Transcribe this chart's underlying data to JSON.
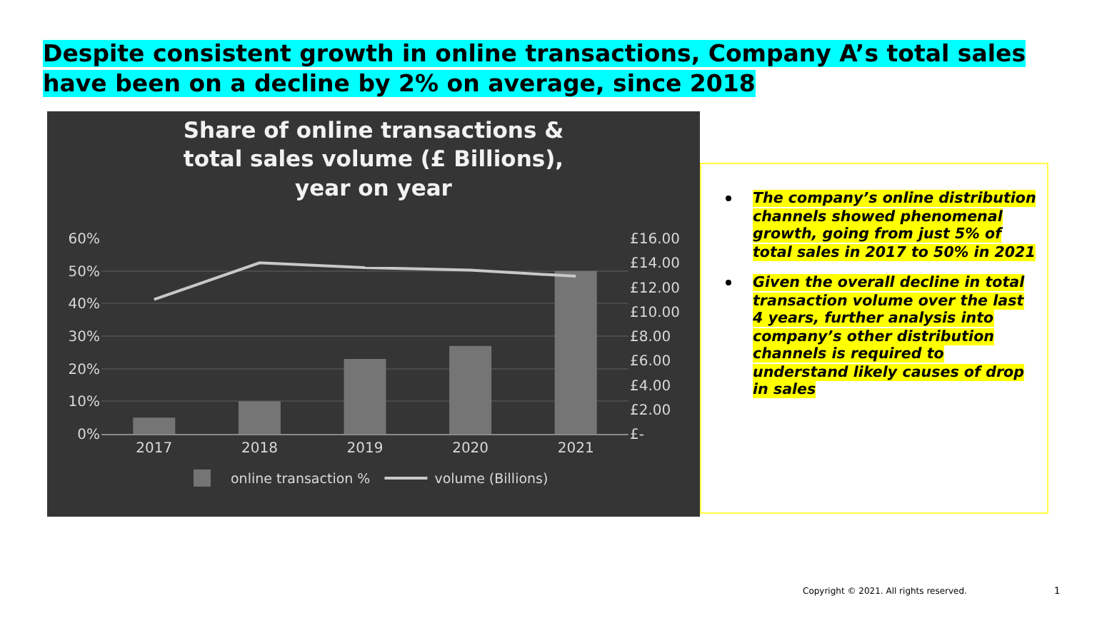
{
  "chart_data": {
    "type": "bar",
    "title": "Share of online transactions & total sales volume (£ Billions), year on year",
    "categories": [
      "2017",
      "2018",
      "2019",
      "2020",
      "2021"
    ],
    "series": [
      {
        "name": "online transaction %",
        "color": "#757575",
        "values": [
          5,
          10,
          23,
          27,
          50
        ]
      },
      {
        "name": "volume (Billions)",
        "type": "line",
        "axis": "y2",
        "color": "#c8c8c8",
        "values": [
          11.0,
          14.0,
          13.6,
          13.4,
          12.9
        ]
      }
    ],
    "ylim": [
      0,
      60
    ],
    "yticks": [
      {
        "value": 0,
        "label": "0%"
      },
      {
        "value": 10,
        "label": "10%"
      },
      {
        "value": 20,
        "label": "20%"
      },
      {
        "value": 30,
        "label": "30%"
      },
      {
        "value": 40,
        "label": "40%"
      },
      {
        "value": 50,
        "label": "50%"
      },
      {
        "value": 60,
        "label": "60%"
      }
    ],
    "y2lim": [
      0,
      16
    ],
    "y2ticks": [
      {
        "value": 0,
        "label": "£-"
      },
      {
        "value": 2,
        "label": "£2.00"
      },
      {
        "value": 4,
        "label": "£4.00"
      },
      {
        "value": 6,
        "label": "£6.00"
      },
      {
        "value": 8,
        "label": "£8.00"
      },
      {
        "value": 10,
        "label": "£10.00"
      },
      {
        "value": 12,
        "label": "£12.00"
      },
      {
        "value": 14,
        "label": "£14.00"
      },
      {
        "value": 16,
        "label": "£16.00"
      }
    ],
    "grid": "y",
    "legend": "bottom",
    "marker": "none",
    "line_style": "solid",
    "annotations": [
      "Despite consistent growth in online transactions, Company A’s total sales have been on a decline by 2% on average, since 2018",
      "The company’s online distribution channels showed phenomenal growth, going from just 5% of total sales in 2017 to 50% in 2021",
      "Given the overall decline in total transaction volume over the last 4 years, further analysis into company’s other distribution channels is required to understand likely causes of drop in sales",
      "Copyright © 2021. All rights reserved.",
      "1"
    ]
  }
}
